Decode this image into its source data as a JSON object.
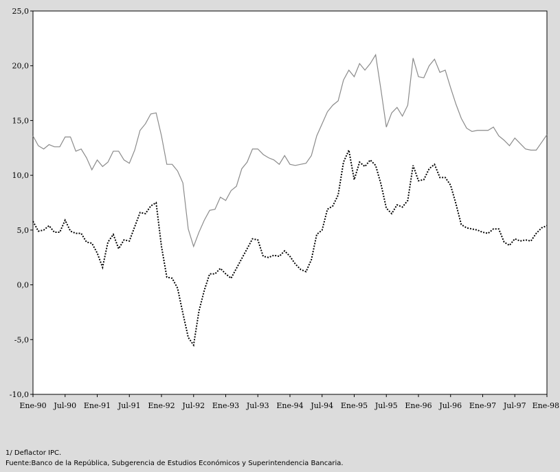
{
  "chart_data": {
    "type": "line",
    "title": "",
    "xlabel": "",
    "ylabel": "",
    "ylim": [
      -10,
      25
    ],
    "yticks": [
      "25,0",
      "20,0",
      "15,0",
      "10,0",
      "5,0",
      "0,0",
      "-5,0",
      "-10,0"
    ],
    "ytick_values": [
      25,
      20,
      15,
      10,
      5,
      0,
      -5,
      -10
    ],
    "xticks": [
      "Ene-90",
      "Jul-90",
      "Ene-91",
      "Jul-91",
      "Ene-92",
      "Jul-92",
      "Ene-93",
      "Jul-93",
      "Ene-94",
      "Jul-94",
      "Ene-95",
      "Jul-95",
      "Ene-96",
      "Jul-96",
      "Ene-97",
      "Jul-97",
      "Ene-98"
    ],
    "grid": false,
    "legend": "none",
    "series": [
      {
        "style": "solid",
        "color": "#8a8a8a",
        "values": [
          13.6,
          12.7,
          12.4,
          12.8,
          12.6,
          12.6,
          13.5,
          13.5,
          12.2,
          12.4,
          11.6,
          10.5,
          11.4,
          10.8,
          11.2,
          12.2,
          12.2,
          11.4,
          11.1,
          12.3,
          14.1,
          14.7,
          15.6,
          15.7,
          13.6,
          11.0,
          11.0,
          10.4,
          9.3,
          5.1,
          3.5,
          4.8,
          5.9,
          6.8,
          6.9,
          8.0,
          7.7,
          8.6,
          9.0,
          10.6,
          11.2,
          12.4,
          12.4,
          11.9,
          11.6,
          11.4,
          11.0,
          11.8,
          11.0,
          10.9,
          11.0,
          11.1,
          11.8,
          13.6,
          14.7,
          15.8,
          16.4,
          16.8,
          18.7,
          19.6,
          19.0,
          20.2,
          19.6,
          20.2,
          21.0,
          17.8,
          14.4,
          15.7,
          16.2,
          15.4,
          16.4,
          20.7,
          19.0,
          18.9,
          20.0,
          20.6,
          19.4,
          19.6,
          18.0,
          16.5,
          15.2,
          14.3,
          14.0,
          14.1,
          14.1,
          14.1,
          14.4,
          13.6,
          13.2,
          12.7,
          13.4,
          12.9,
          12.4,
          12.3,
          12.3,
          13.0,
          13.7
        ]
      },
      {
        "style": "dotted",
        "color": "#000000",
        "values": [
          5.8,
          4.9,
          5.0,
          5.4,
          4.8,
          4.8,
          5.9,
          4.9,
          4.7,
          4.7,
          3.9,
          3.8,
          2.9,
          1.6,
          3.9,
          4.6,
          3.3,
          4.1,
          4.0,
          5.3,
          6.6,
          6.5,
          7.2,
          7.5,
          3.5,
          0.7,
          0.6,
          -0.3,
          -2.6,
          -4.8,
          -5.5,
          -2.4,
          -0.5,
          1.0,
          1.0,
          1.5,
          1.0,
          0.6,
          1.5,
          2.4,
          3.3,
          4.2,
          4.1,
          2.6,
          2.5,
          2.7,
          2.6,
          3.1,
          2.6,
          1.9,
          1.4,
          1.2,
          2.3,
          4.6,
          5.0,
          6.9,
          7.2,
          8.2,
          11.2,
          12.3,
          9.6,
          11.2,
          10.8,
          11.4,
          10.9,
          9.2,
          7.0,
          6.5,
          7.3,
          7.1,
          7.7,
          10.9,
          9.5,
          9.6,
          10.6,
          11.0,
          9.8,
          9.8,
          9.1,
          7.4,
          5.5,
          5.2,
          5.1,
          5.0,
          4.8,
          4.7,
          5.1,
          5.1,
          3.9,
          3.6,
          4.2,
          4.0,
          4.1,
          4.0,
          4.7,
          5.2,
          5.4
        ]
      }
    ]
  },
  "notes": {
    "line1": "1/ Deflactor IPC.",
    "line2": "Fuente:Banco de la República, Subgerencia de Estudios Económicos  y Superintendencia Bancaria."
  }
}
